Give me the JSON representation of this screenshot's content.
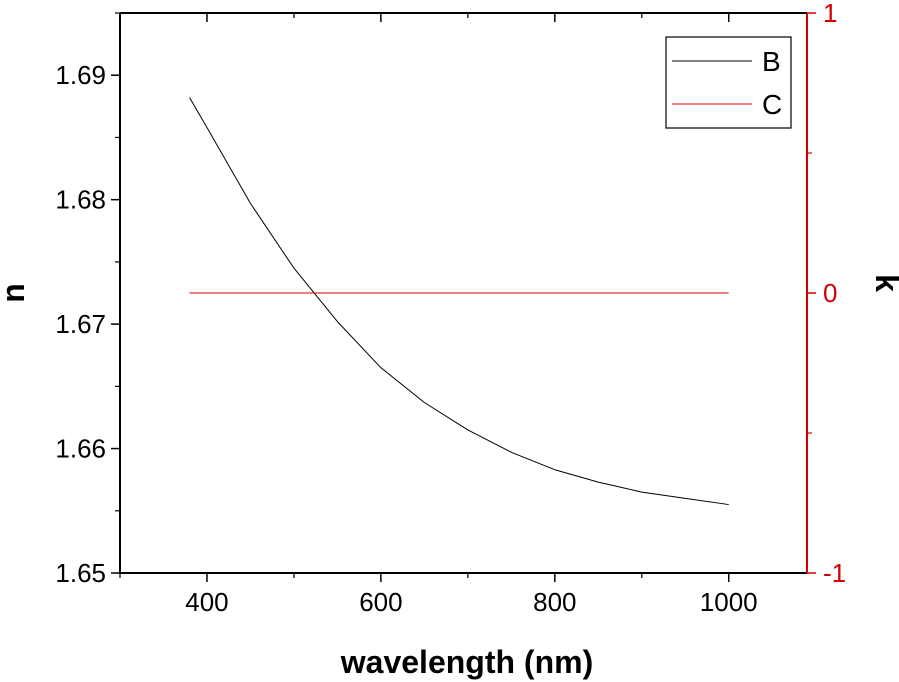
{
  "chart_data": {
    "type": "line",
    "xlabel": "wavelength (nm)",
    "ylabel": "n",
    "y2label": "k",
    "xlim": [
      300,
      1090
    ],
    "ylim": [
      1.65,
      1.695
    ],
    "y2lim": [
      -1,
      1
    ],
    "xticks": [
      "400",
      "600",
      "800",
      "1000"
    ],
    "yticks": [
      "1.65",
      "1.66",
      "1.67",
      "1.68",
      "1.69"
    ],
    "y2ticks": [
      "-1",
      "0",
      "1"
    ],
    "grid": false,
    "legend_position": "top-right",
    "colors": {
      "left_axis": "#000000",
      "right_axis": "#d40000",
      "series_b": "#000000",
      "series_c": "#d40000"
    },
    "series": [
      {
        "name": "B",
        "axis": "left",
        "x": [
          380,
          400,
          450,
          500,
          550,
          600,
          650,
          700,
          750,
          800,
          850,
          900,
          950,
          1000
        ],
        "values": [
          1.6882,
          1.6858,
          1.6797,
          1.6745,
          1.6702,
          1.6665,
          1.6637,
          1.6615,
          1.6597,
          1.6583,
          1.6573,
          1.6565,
          1.656,
          1.6555
        ]
      },
      {
        "name": "C",
        "axis": "right",
        "x": [
          380,
          1000
        ],
        "values": [
          0,
          0
        ]
      }
    ]
  }
}
